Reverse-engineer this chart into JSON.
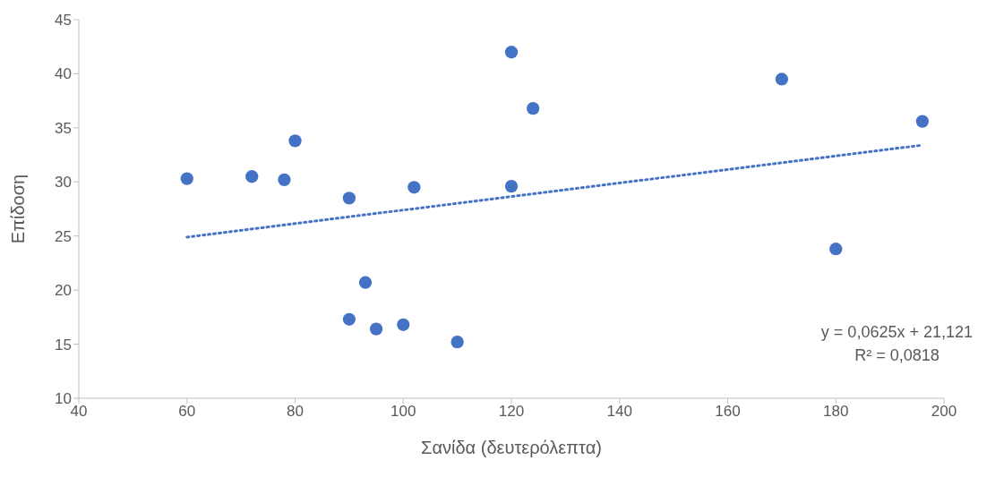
{
  "chart_data": {
    "type": "scatter",
    "xlabel": "Σανίδα (δευτερόλεπτα)",
    "ylabel": "Επίδοση",
    "x": [
      60,
      72,
      78,
      80,
      90,
      90,
      93,
      95,
      100,
      102,
      110,
      120,
      120,
      124,
      170,
      180,
      196
    ],
    "series": [
      {
        "color": "#4472c4",
        "values": [
          30.3,
          30.5,
          30.2,
          33.8,
          28.5,
          17.3,
          20.7,
          16.4,
          16.8,
          29.5,
          15.2,
          42.0,
          29.6,
          36.8,
          39.5,
          23.8,
          35.6
        ]
      },
      {
        "type": "line",
        "color": "#4472c4",
        "line_style": "dotted",
        "marker": "none",
        "x": [
          60,
          196
        ],
        "values": [
          24.9,
          33.4
        ]
      }
    ],
    "marker": "circle",
    "xlim": [
      40,
      200
    ],
    "xticks": [
      40,
      60,
      80,
      100,
      120,
      140,
      160,
      180,
      200
    ],
    "ylim": [
      10,
      45
    ],
    "yticks": [
      10,
      15,
      20,
      25,
      30,
      35,
      40,
      45
    ],
    "grid": false,
    "legend": false,
    "annotations": [
      "y = 0,0625x + 21,121",
      "R² = 0,0818"
    ]
  }
}
